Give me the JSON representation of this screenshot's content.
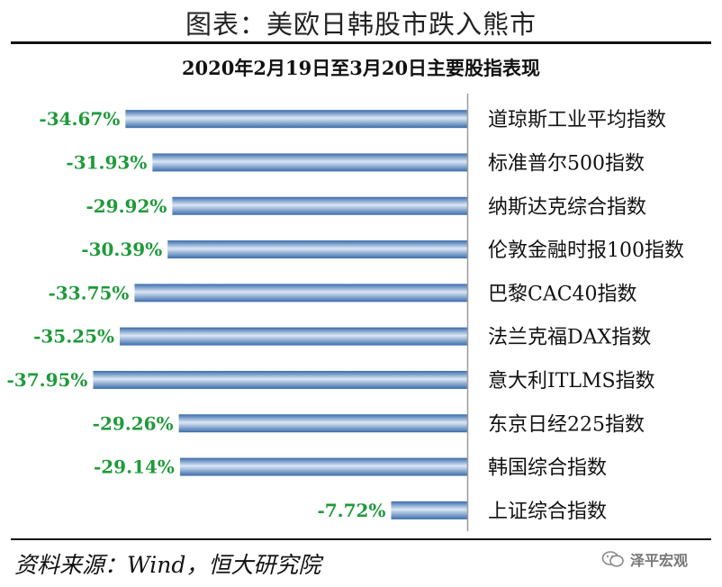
{
  "title": "图表：美欧日韩股市跌入熊市",
  "source": "资料来源：Wind，恒大研究院",
  "watermark": {
    "text": "泽平宏观",
    "icon": "wechat-icon"
  },
  "colors": {
    "bar_dark": "#3a6cab",
    "bar_light": "#dbe7f5",
    "label": "#1f9a3a",
    "axis": "#9a9a9a"
  },
  "chart_data": {
    "type": "bar",
    "orientation": "horizontal",
    "title": "2020年2月19日至3月20日主要股指表现",
    "unit": "%",
    "categories": [
      "道琼斯工业平均指数",
      "标准普尔500指数",
      "纳斯达克综合指数",
      "伦敦金融时报100指数",
      "巴黎CAC40指数",
      "法兰克福DAX指数",
      "意大利ITLMS指数",
      "东京日经225指数",
      "韩国综合指数",
      "上证综合指数"
    ],
    "values": [
      -34.67,
      -31.93,
      -29.92,
      -30.39,
      -33.75,
      -35.25,
      -37.95,
      -29.26,
      -29.14,
      -7.72
    ],
    "data_labels": [
      "-34.67%",
      "-31.93%",
      "-29.92%",
      "-30.39%",
      "-33.75%",
      "-35.25%",
      "-37.95%",
      "-29.26%",
      "-29.14%",
      "-7.72%"
    ],
    "xlim": [
      -40,
      0
    ],
    "grid": false,
    "legend": "none"
  }
}
